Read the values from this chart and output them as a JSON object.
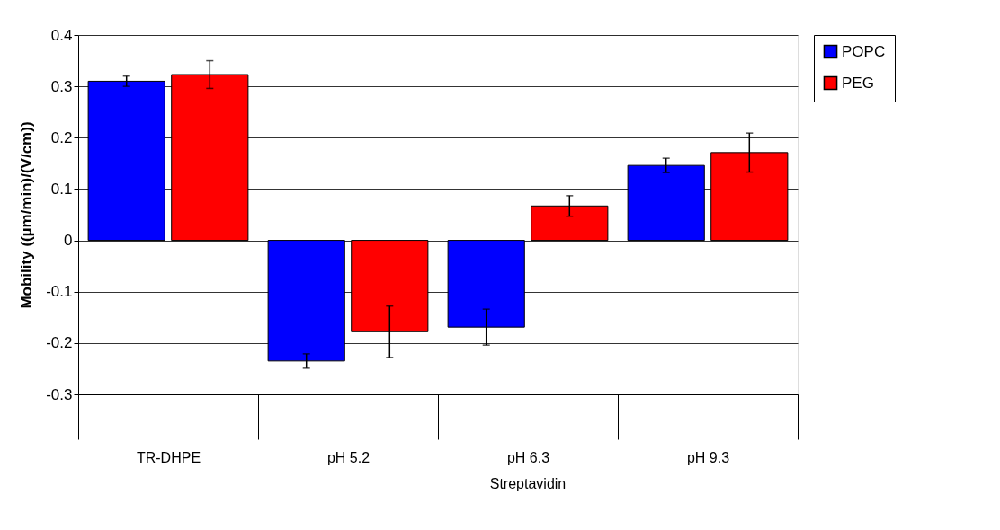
{
  "chart_data": {
    "type": "bar",
    "ylabel": "Mobility ((µm/min)/(V/cm))",
    "categories": [
      "TR-DHPE",
      "pH 5.2",
      "pH 6.3",
      "pH 9.3"
    ],
    "series": [
      {
        "name": "POPC",
        "color": "#0000ff",
        "values": [
          0.31,
          -0.235,
          -0.169,
          0.146
        ],
        "errors": [
          0.01,
          0.014,
          0.035,
          0.014
        ]
      },
      {
        "name": "PEG",
        "color": "#ff0000",
        "values": [
          0.323,
          -0.178,
          0.067,
          0.171
        ],
        "errors": [
          0.027,
          0.05,
          0.02,
          0.038
        ]
      }
    ],
    "ylim": [
      -0.3,
      0.4
    ],
    "yticks": [
      -0.3,
      -0.2,
      -0.1,
      0,
      0.1,
      0.2,
      0.3,
      0.4
    ],
    "grid": "y",
    "legend": "right",
    "annotations": [
      "Streptavidin"
    ]
  }
}
